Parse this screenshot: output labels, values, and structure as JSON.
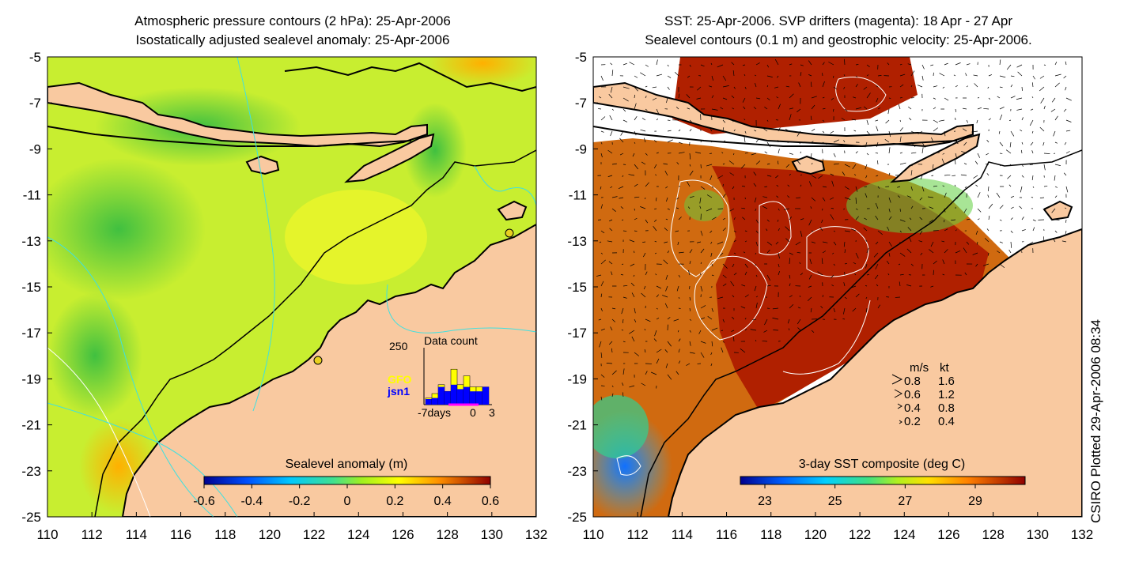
{
  "left_panel": {
    "title_line1": "Atmospheric pressure contours (2 hPa): 25-Apr-2006",
    "title_line2": "Isostatically adjusted sealevel anomaly: 25-Apr-2006",
    "x_ticks": [
      "110",
      "112",
      "114",
      "116",
      "118",
      "120",
      "122",
      "124",
      "126",
      "128",
      "130",
      "132"
    ],
    "y_ticks": [
      "-5",
      "-7",
      "-9",
      "-11",
      "-13",
      "-15",
      "-17",
      "-19",
      "-21",
      "-23",
      "-25"
    ],
    "colorbar_label": "Sealevel anomaly (m)",
    "colorbar_ticks": [
      "-0.6",
      "-0.4",
      "-0.2",
      "0",
      "0.2",
      "0.4",
      "0.6"
    ],
    "colorbar_range": [
      -0.6,
      0.6
    ],
    "inset": {
      "title": "Data count",
      "ymax_label": "250",
      "legend_gfo": "GFO",
      "legend_jsn1": "jsn1",
      "xlabel_start": "-7days",
      "xlabel_zero": "0",
      "xlabel_end": "3",
      "gfo_color": "#ffff00",
      "jsn1_color": "#0000ff",
      "bars_total": [
        30,
        50,
        90,
        60,
        160,
        90,
        130,
        80,
        80,
        80
      ],
      "bars_jsn1": [
        25,
        30,
        80,
        60,
        90,
        70,
        80,
        60,
        60,
        80
      ]
    }
  },
  "right_panel": {
    "title_line1": "SST: 25-Apr-2006. SVP drifters (magenta): 18 Apr - 27 Apr",
    "title_line2": "Sealevel contours (0.1 m) and geostrophic velocity: 25-Apr-2006.",
    "x_ticks": [
      "110",
      "112",
      "114",
      "116",
      "118",
      "120",
      "122",
      "124",
      "126",
      "128",
      "130",
      "132"
    ],
    "y_ticks": [
      "-5",
      "-7",
      "-9",
      "-11",
      "-13",
      "-15",
      "-17",
      "-19",
      "-21",
      "-23",
      "-25"
    ],
    "colorbar_label": "3-day SST composite (deg C)",
    "colorbar_ticks": [
      "23",
      "25",
      "27",
      "29"
    ],
    "velocity_legend": {
      "header_ms": "m/s",
      "header_kt": "kt",
      "rows": [
        {
          "ms": "0.8",
          "kt": "1.6"
        },
        {
          "ms": "0.6",
          "kt": "1.2"
        },
        {
          "ms": "0.4",
          "kt": "0.8"
        },
        {
          "ms": "0.2",
          "kt": "0.4"
        }
      ]
    }
  },
  "side_note": "CSIRO Plotted 29-Apr-2006 08:34",
  "colors": {
    "land": "#f9c9a0",
    "coast": "#000000",
    "slice_green": "#9be82c",
    "sst_hot": "#b02000",
    "sst_mid": "#e07010",
    "pressure_contour": "#40e0e0",
    "drifter": "#ff00ff"
  }
}
